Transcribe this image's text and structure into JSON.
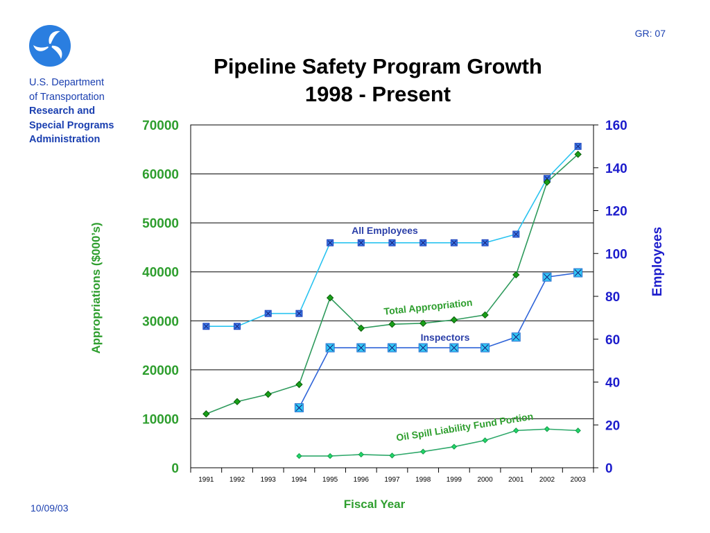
{
  "header": {
    "org_lines": [
      "U.S. Department",
      "of Transportation"
    ],
    "org_bold_lines": [
      "Research and",
      "Special Programs",
      "Administration"
    ],
    "slide_code": "GR: 07",
    "title_line1": "Pipeline Safety Program Growth",
    "title_line2": "1998 - Present",
    "logo_icon": "dot-triskelion-logo"
  },
  "footer": {
    "date": "10/09/03"
  },
  "colors": {
    "org_blue": "#1a3fb0",
    "left_axis_green": "#2e9e2e",
    "right_axis_blue": "#1c1ccc",
    "all_employees_line": "#29c3f0",
    "inspectors_line": "#2f64d8",
    "total_appropriation_line": "#2e9a5c",
    "oil_spill_line": "#2ea86a"
  },
  "chart_data": {
    "type": "line",
    "title": "Pipeline Safety Program Growth 1998 - Present",
    "xlabel": "Fiscal Year",
    "ylabel": "Appropriations ($000’s)",
    "y2label": "Employees",
    "categories": [
      "1991",
      "1992",
      "1993",
      "1994",
      "1995",
      "1996",
      "1997",
      "1998",
      "1999",
      "2000",
      "2001",
      "2002",
      "2003"
    ],
    "ylim": [
      0,
      70000
    ],
    "y2lim": [
      0,
      160
    ],
    "yticks": [
      0,
      10000,
      20000,
      30000,
      40000,
      50000,
      60000,
      70000
    ],
    "y2ticks": [
      0,
      20,
      40,
      60,
      80,
      100,
      120,
      140,
      160
    ],
    "grid": true,
    "series": [
      {
        "name": "All Employees",
        "axis": "right",
        "marker": "x-square",
        "values": [
          66,
          66,
          72,
          72,
          105,
          105,
          105,
          105,
          105,
          105,
          109,
          135,
          150
        ]
      },
      {
        "name": "Inspectors",
        "axis": "right",
        "marker": "x-square",
        "values": [
          null,
          null,
          null,
          28,
          56,
          56,
          56,
          56,
          56,
          56,
          61,
          89,
          91
        ]
      },
      {
        "name": "Total Appropriation",
        "axis": "left",
        "marker": "diamond",
        "values": [
          11000,
          13500,
          15000,
          17000,
          34700,
          28500,
          29300,
          29500,
          30200,
          31200,
          39400,
          58300,
          64000
        ]
      },
      {
        "name": "Oil Spill Liability Fund Portion",
        "axis": "left",
        "marker": "diamond",
        "values": [
          null,
          null,
          null,
          2400,
          2400,
          2700,
          2500,
          3300,
          4300,
          5600,
          7600,
          7900,
          7600
        ]
      }
    ]
  }
}
